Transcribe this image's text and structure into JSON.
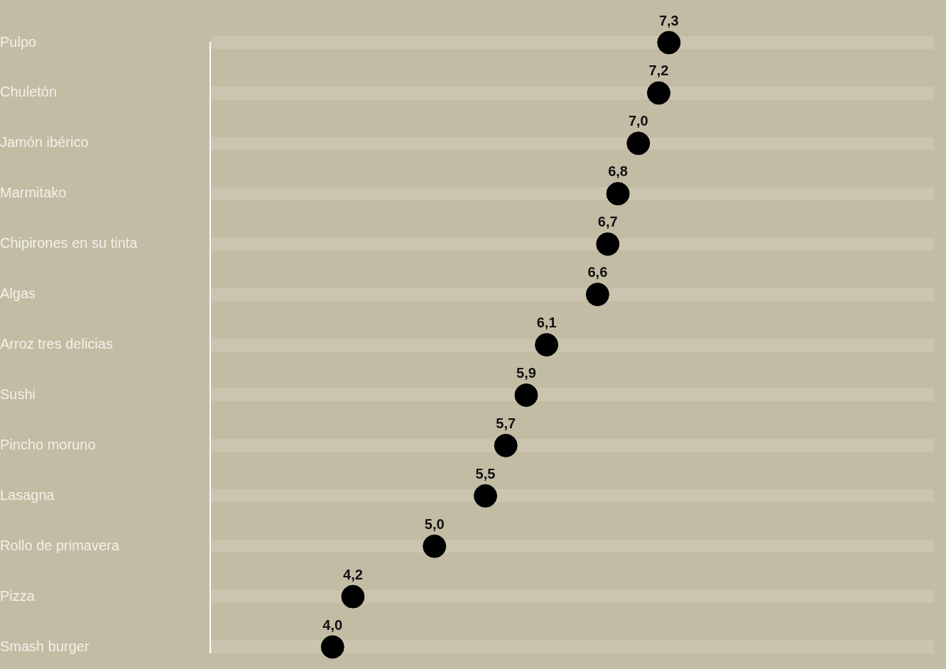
{
  "chart_data": {
    "type": "scatter",
    "orientation": "horizontal",
    "categories": [
      "Pulpo",
      "Chuletón",
      "Jamón ibérico",
      "Marmitako",
      "Chipirones en su tinta",
      "Algas",
      "Arroz tres delicias",
      "Sushi",
      "Pincho moruno",
      "Lasagna",
      "Rollo de primavera",
      "Pizza",
      "Smash burger"
    ],
    "values": [
      7.3,
      7.2,
      7.0,
      6.8,
      6.7,
      6.6,
      6.1,
      5.9,
      5.7,
      5.5,
      5.0,
      4.2,
      4.0
    ],
    "value_labels": [
      "7,3",
      "7,2",
      "7,0",
      "6,8",
      "6,7",
      "6,6",
      "6,1",
      "5,9",
      "5,7",
      "5,5",
      "5,0",
      "4,2",
      "4,0"
    ],
    "color": "#000000",
    "marker": "circle",
    "grid": "y",
    "tick_labels": "y",
    "legend": false,
    "xlim": [
      2.8,
      9.9
    ]
  }
}
